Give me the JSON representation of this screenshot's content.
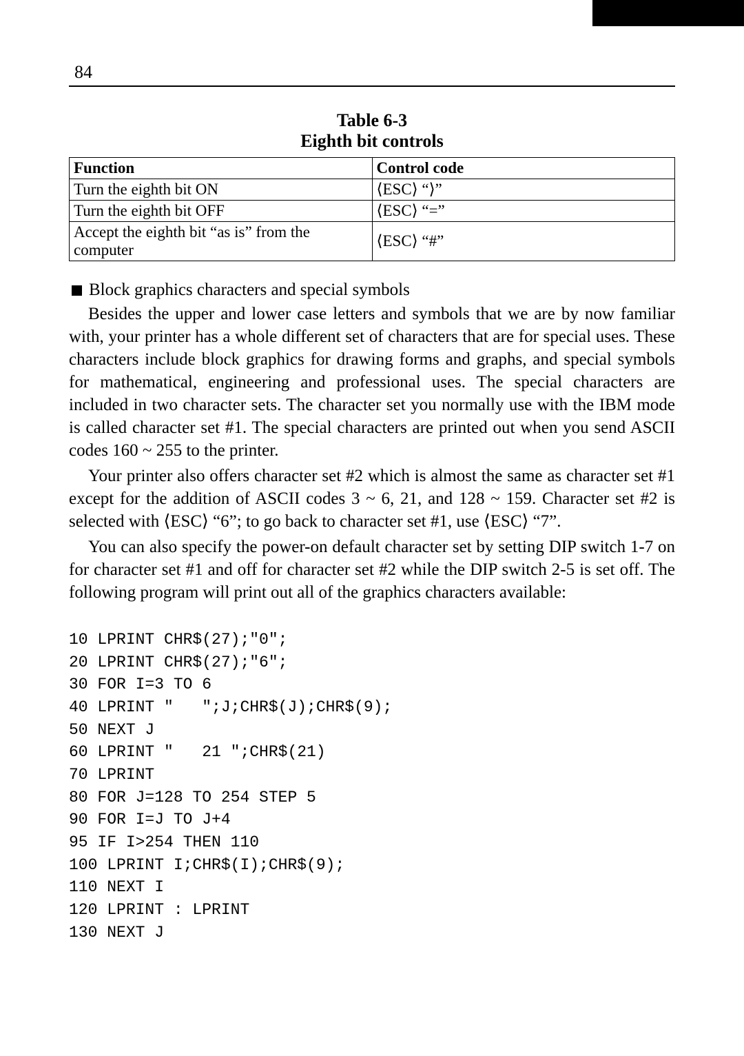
{
  "page_number": "84",
  "table": {
    "title_line1": "Table 6-3",
    "title_line2": "Eighth bit controls",
    "headers": {
      "func": "Function",
      "code": "Control code"
    },
    "rows": [
      {
        "func": "Turn the eighth bit ON",
        "code": "⟨ESC⟩ “⟩”"
      },
      {
        "func": "Turn the eighth bit OFF",
        "code": "⟨ESC⟩ “=”"
      },
      {
        "func": "Accept the eighth bit “as is” from the computer",
        "code": "⟨ESC⟩ “#”"
      }
    ]
  },
  "section_heading": "Block graphics characters and special symbols",
  "paragraphs": [
    "Besides the upper and lower case letters and symbols that we are by now familiar with, your printer has a whole different set of characters that are for special uses. These characters include block graphics for drawing forms and graphs, and special symbols for mathematical, engineering and professional uses. The special characters are included in two character sets. The character set you normally use with the IBM mode is called character set #1. The special characters are printed out when you send ASCII codes 160 ~ 255 to the printer.",
    "Your printer also offers character set #2 which is almost the same as character set #1 except for the addition of ASCII codes 3 ~ 6, 21, and 128 ~ 159. Character set #2 is selected with ⟨ESC⟩ “6”; to go back to character set #1, use ⟨ESC⟩ “7”.",
    "You can also specify the power-on default character set by setting DIP switch 1-7 on for character set #1 and off for character set #2 while the DIP switch 2-5 is set off. The following program will print out all of the graphics characters available:"
  ],
  "code_listing": "10 LPRINT CHR$(27);\"0\";\n20 LPRINT CHR$(27);\"6\";\n30 FOR I=3 TO 6\n40 LPRINT \"   \";J;CHR$(J);CHR$(9);\n50 NEXT J\n60 LPRINT \"   21 \";CHR$(21)\n70 LPRINT\n80 FOR J=128 TO 254 STEP 5\n90 FOR I=J TO J+4\n95 IF I>254 THEN 110\n100 LPRINT I;CHR$(I);CHR$(9);\n110 NEXT I\n120 LPRINT : LPRINT\n130 NEXT J"
}
